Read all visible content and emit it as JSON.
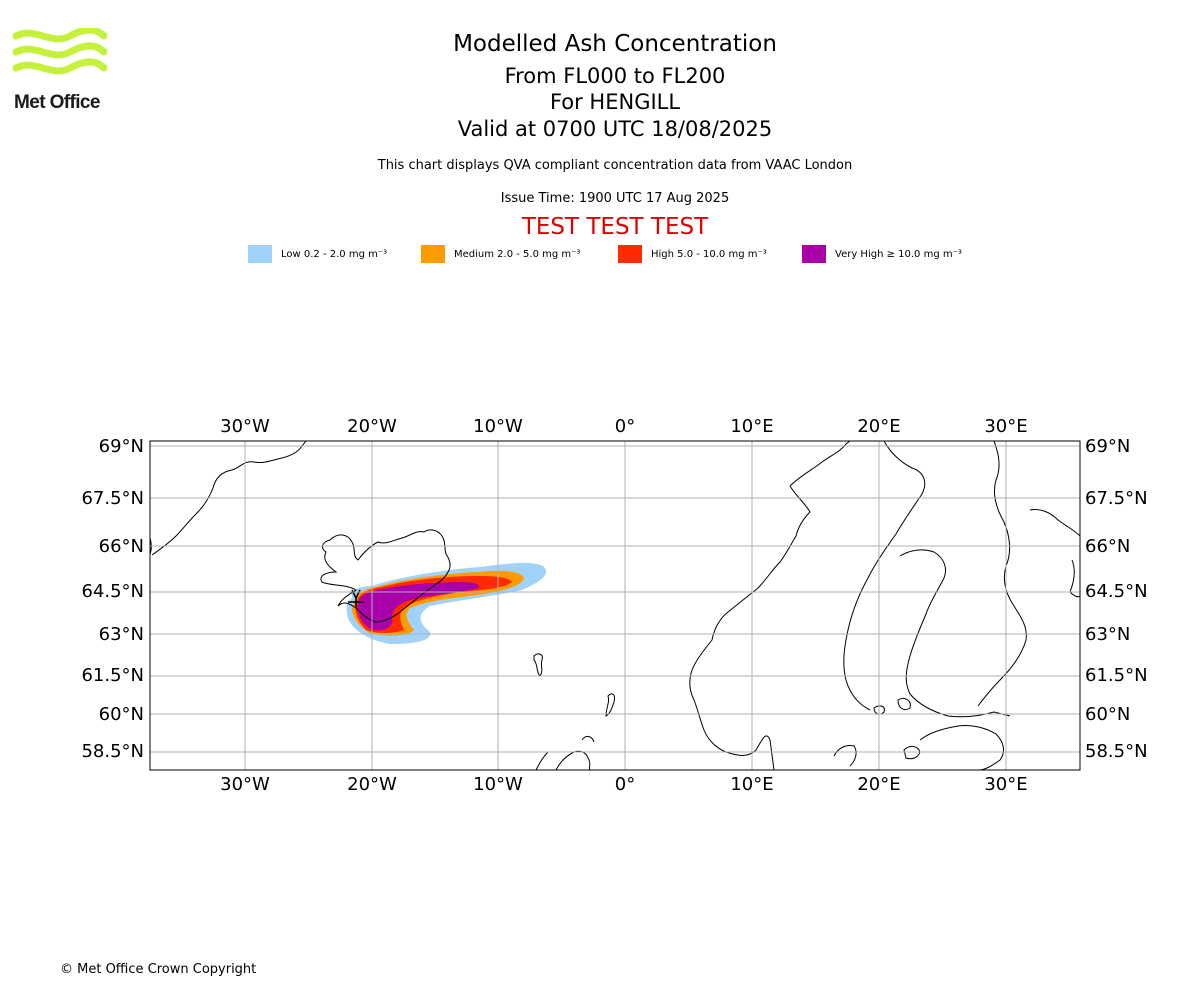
{
  "header": {
    "title": "Modelled Ash Concentration",
    "levels": "From FL000 to FL200",
    "volcano": "For HENGILL",
    "valid": "Valid at 0700 UTC 18/08/2025",
    "compliance": "This chart displays QVA compliant concentration data from VAAC London",
    "issue_time": "Issue Time: 1900 UTC 17 Aug 2025",
    "test_banner": "TEST TEST TEST"
  },
  "logo": {
    "text": "Met Office",
    "color": "#c6f13a"
  },
  "legend": [
    {
      "label": "Low 0.2 - 2.0 mg m⁻³",
      "color": "#a0d2fa"
    },
    {
      "label": "Medium 2.0 - 5.0 mg m⁻³",
      "color": "#ff9a00"
    },
    {
      "label": "High 5.0 - 10.0 mg m⁻³",
      "color": "#ff2a00"
    },
    {
      "label": "Very High ≥ 10.0 mg m⁻³",
      "color": "#aa00aa"
    }
  ],
  "map": {
    "lon_labels": [
      "30°W",
      "20°W",
      "10°W",
      "0°",
      "10°E",
      "20°E",
      "30°E"
    ],
    "lat_labels": [
      "69°N",
      "67.5°N",
      "66°N",
      "64.5°N",
      "63°N",
      "61.5°N",
      "60°N",
      "58.5°N"
    ]
  },
  "footer": {
    "copyright": "© Met Office Crown Copyright"
  }
}
